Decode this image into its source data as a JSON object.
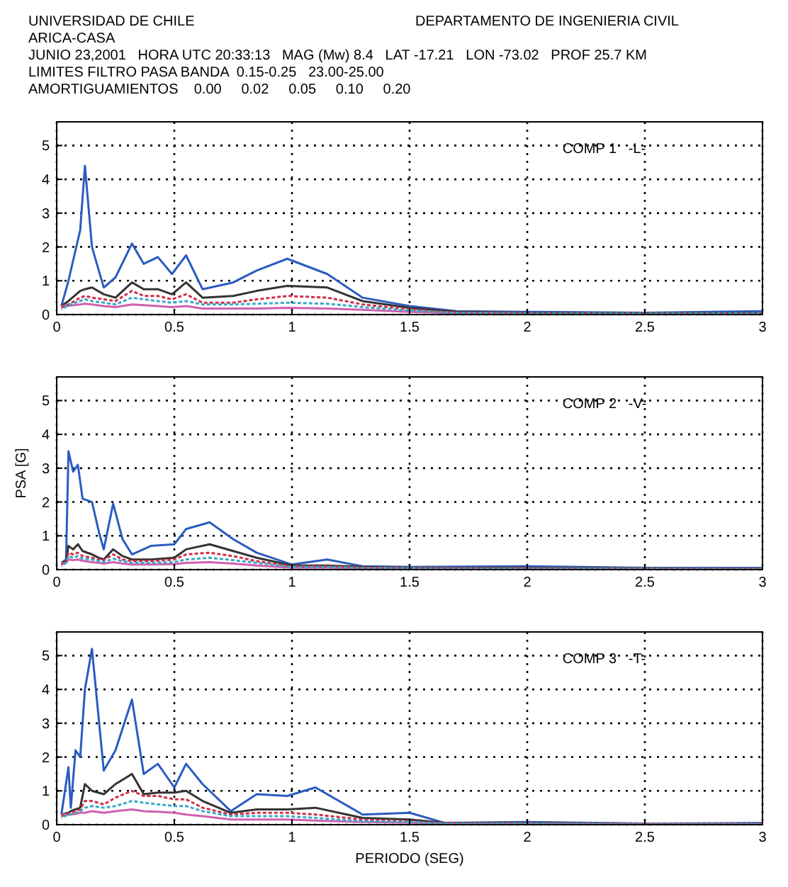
{
  "chart_data": [
    {
      "type": "line",
      "title": "UNIVERSIDAD DE CHILE",
      "subtitle": "DEPARTAMENTO DE INGENIERIA CIVIL",
      "annotations": [
        "ARICA-CASA",
        "JUNIO 23,2001   HORA UTC 20:33:13   MAG (Mw) 8.4   LAT -17.21   LON -73.02   PROF 25.7 KM",
        "LIMITES FILTRO PASA BANDA  0.15-0.25   23.00-25.00",
        "AMORTIGUAMIENTOS    0.00     0.02     0.05     0.10     0.20",
        "COMP 1   -L-"
      ],
      "x": [
        0.02,
        0.05,
        0.1,
        0.12,
        0.15,
        0.2,
        0.25,
        0.32,
        0.37,
        0.43,
        0.49,
        0.55,
        0.62,
        0.75,
        0.85,
        0.98,
        1.15,
        1.3,
        1.5,
        1.7,
        2,
        2.5,
        3
      ],
      "series": [
        {
          "color": "#2a5cc0",
          "values": [
            0.25,
            1.0,
            2.5,
            4.4,
            2.0,
            0.8,
            1.1,
            2.1,
            1.5,
            1.7,
            1.2,
            1.75,
            0.75,
            0.95,
            1.3,
            1.65,
            1.2,
            0.5,
            0.25,
            0.1,
            0.08,
            0.05,
            0.1
          ]
        },
        {
          "color": "#333333",
          "values": [
            0.25,
            0.4,
            0.7,
            0.75,
            0.8,
            0.6,
            0.5,
            0.95,
            0.75,
            0.75,
            0.6,
            0.95,
            0.5,
            0.55,
            0.7,
            0.85,
            0.8,
            0.4,
            0.2,
            0.08,
            0.05,
            0.04,
            0.04
          ]
        },
        {
          "color": "#d0304a",
          "line_style": "dashed",
          "values": [
            0.2,
            0.3,
            0.5,
            0.55,
            0.5,
            0.45,
            0.4,
            0.7,
            0.55,
            0.55,
            0.45,
            0.6,
            0.35,
            0.35,
            0.45,
            0.55,
            0.5,
            0.3,
            0.15,
            0.06,
            0.04,
            0.03,
            0.03
          ]
        },
        {
          "color": "#3aa8c8",
          "line_style": "dashed",
          "values": [
            0.15,
            0.28,
            0.4,
            0.45,
            0.4,
            0.35,
            0.3,
            0.5,
            0.45,
            0.4,
            0.35,
            0.4,
            0.3,
            0.3,
            0.32,
            0.35,
            0.32,
            0.22,
            0.12,
            0.05,
            0.03,
            0.03,
            0.03
          ]
        },
        {
          "color": "#d060b0",
          "values": [
            0.25,
            0.26,
            0.3,
            0.32,
            0.3,
            0.25,
            0.22,
            0.3,
            0.28,
            0.25,
            0.22,
            0.25,
            0.18,
            0.18,
            0.18,
            0.2,
            0.18,
            0.14,
            0.08,
            0.04,
            0.03,
            null,
            null
          ]
        }
      ],
      "xlim": [
        0,
        3
      ],
      "xticks": [
        0,
        0.5,
        1,
        1.5,
        2,
        2.5,
        3
      ],
      "ylim": [
        0,
        5.7
      ],
      "yticks": [
        0,
        1,
        2,
        3,
        4,
        5
      ],
      "grid": true,
      "line_style": "solid",
      "marker": "none"
    },
    {
      "type": "line",
      "ylabel": "PSA [G]",
      "annotations": [
        "COMP 2   -V-"
      ],
      "x": [
        0.02,
        0.04,
        0.05,
        0.07,
        0.09,
        0.11,
        0.15,
        0.18,
        0.2,
        0.24,
        0.28,
        0.32,
        0.4,
        0.5,
        0.55,
        0.65,
        0.75,
        0.85,
        1.0,
        1.15,
        1.3,
        1.5,
        2,
        2.5,
        3
      ],
      "series": [
        {
          "color": "#2a5cc0",
          "values": [
            0.2,
            0.3,
            3.5,
            2.9,
            3.1,
            2.1,
            2.0,
            1.1,
            0.6,
            1.95,
            0.9,
            0.45,
            0.7,
            0.75,
            1.2,
            1.4,
            0.9,
            0.5,
            0.15,
            0.3,
            0.1,
            0.08,
            0.1,
            0.05,
            0.05
          ]
        },
        {
          "color": "#333333",
          "values": [
            0.2,
            0.25,
            0.7,
            0.6,
            0.75,
            0.55,
            0.45,
            0.35,
            0.3,
            0.6,
            0.4,
            0.3,
            0.3,
            0.35,
            0.6,
            0.75,
            0.55,
            0.35,
            0.12,
            0.12,
            0.08,
            0.05,
            0.05,
            0.04,
            0.03
          ]
        },
        {
          "color": "#d0304a",
          "line_style": "dashed",
          "values": [
            0.15,
            0.22,
            0.5,
            0.45,
            0.5,
            0.4,
            0.35,
            0.3,
            0.28,
            0.45,
            0.3,
            0.25,
            0.25,
            0.3,
            0.45,
            0.5,
            0.4,
            0.25,
            0.1,
            0.1,
            0.06,
            0.04,
            0.04,
            0.03,
            0.03
          ]
        },
        {
          "color": "#3aa8c8",
          "line_style": "dashed",
          "values": [
            0.1,
            0.2,
            0.4,
            0.35,
            0.4,
            0.32,
            0.3,
            0.25,
            0.22,
            0.32,
            0.25,
            0.2,
            0.2,
            0.22,
            0.3,
            0.35,
            0.28,
            0.2,
            0.08,
            0.08,
            0.05,
            0.04,
            0.03,
            0.03,
            0.02
          ]
        },
        {
          "color": "#d060b0",
          "values": [
            0.2,
            0.2,
            0.3,
            0.28,
            0.3,
            0.26,
            0.22,
            0.2,
            0.18,
            0.22,
            0.18,
            0.15,
            0.15,
            0.16,
            0.2,
            0.22,
            0.18,
            0.12,
            0.06,
            0.06,
            0.04,
            0.03,
            null,
            null,
            null
          ]
        }
      ],
      "xlim": [
        0,
        3
      ],
      "xticks": [
        0,
        0.5,
        1,
        1.5,
        2,
        2.5,
        3
      ],
      "ylim": [
        0,
        5.7
      ],
      "yticks": [
        0,
        1,
        2,
        3,
        4,
        5
      ],
      "grid": true,
      "line_style": "solid",
      "marker": "none"
    },
    {
      "type": "line",
      "xlabel": "PERIODO (SEG)",
      "annotations": [
        "COMP 3   -T-"
      ],
      "x": [
        0.02,
        0.05,
        0.06,
        0.08,
        0.1,
        0.12,
        0.15,
        0.2,
        0.25,
        0.32,
        0.37,
        0.43,
        0.5,
        0.55,
        0.62,
        0.74,
        0.85,
        0.98,
        1.1,
        1.3,
        1.5,
        1.65,
        2,
        2.5,
        3
      ],
      "series": [
        {
          "color": "#2a5cc0",
          "values": [
            0.3,
            1.7,
            0.5,
            2.2,
            2.0,
            4.0,
            5.2,
            1.6,
            2.2,
            3.7,
            1.5,
            1.8,
            1.1,
            1.8,
            1.2,
            0.4,
            0.9,
            0.85,
            1.1,
            0.3,
            0.35,
            0.05,
            0.08,
            0.03,
            0.05
          ]
        },
        {
          "color": "#333333",
          "values": [
            0.3,
            0.35,
            0.4,
            0.45,
            0.5,
            1.2,
            1.0,
            0.9,
            1.2,
            1.5,
            0.9,
            0.95,
            0.95,
            1.0,
            0.7,
            0.35,
            0.45,
            0.45,
            0.5,
            0.2,
            0.15,
            0.05,
            0.05,
            0.03,
            0.03
          ]
        },
        {
          "color": "#d0304a",
          "line_style": "dashed",
          "values": [
            0.25,
            0.32,
            0.35,
            0.4,
            0.45,
            0.7,
            0.7,
            0.6,
            0.8,
            1.0,
            0.85,
            0.85,
            0.75,
            0.75,
            0.5,
            0.3,
            0.35,
            0.35,
            0.3,
            0.15,
            0.1,
            0.04,
            0.04,
            0.03,
            0.03
          ]
        },
        {
          "color": "#3aa8c8",
          "line_style": "dashed",
          "values": [
            0.2,
            0.3,
            0.3,
            0.35,
            0.4,
            0.5,
            0.55,
            0.5,
            0.55,
            0.7,
            0.65,
            0.6,
            0.55,
            0.55,
            0.4,
            0.25,
            0.25,
            0.25,
            0.2,
            0.1,
            0.08,
            0.03,
            0.03,
            0.02,
            0.02
          ]
        },
        {
          "color": "#d060b0",
          "values": [
            0.3,
            0.3,
            0.3,
            0.32,
            0.35,
            0.35,
            0.4,
            0.35,
            0.4,
            0.45,
            0.4,
            0.38,
            0.35,
            0.3,
            0.25,
            0.15,
            0.15,
            0.15,
            0.12,
            0.08,
            0.06,
            0.03,
            0.03,
            0.02,
            0.02
          ]
        }
      ],
      "xlim": [
        0,
        3
      ],
      "xticks": [
        0,
        0.5,
        1,
        1.5,
        2,
        2.5,
        3
      ],
      "ylim": [
        0,
        5.7
      ],
      "yticks": [
        0,
        1,
        2,
        3,
        4,
        5
      ],
      "grid": true,
      "line_style": "solid",
      "marker": "none"
    }
  ]
}
